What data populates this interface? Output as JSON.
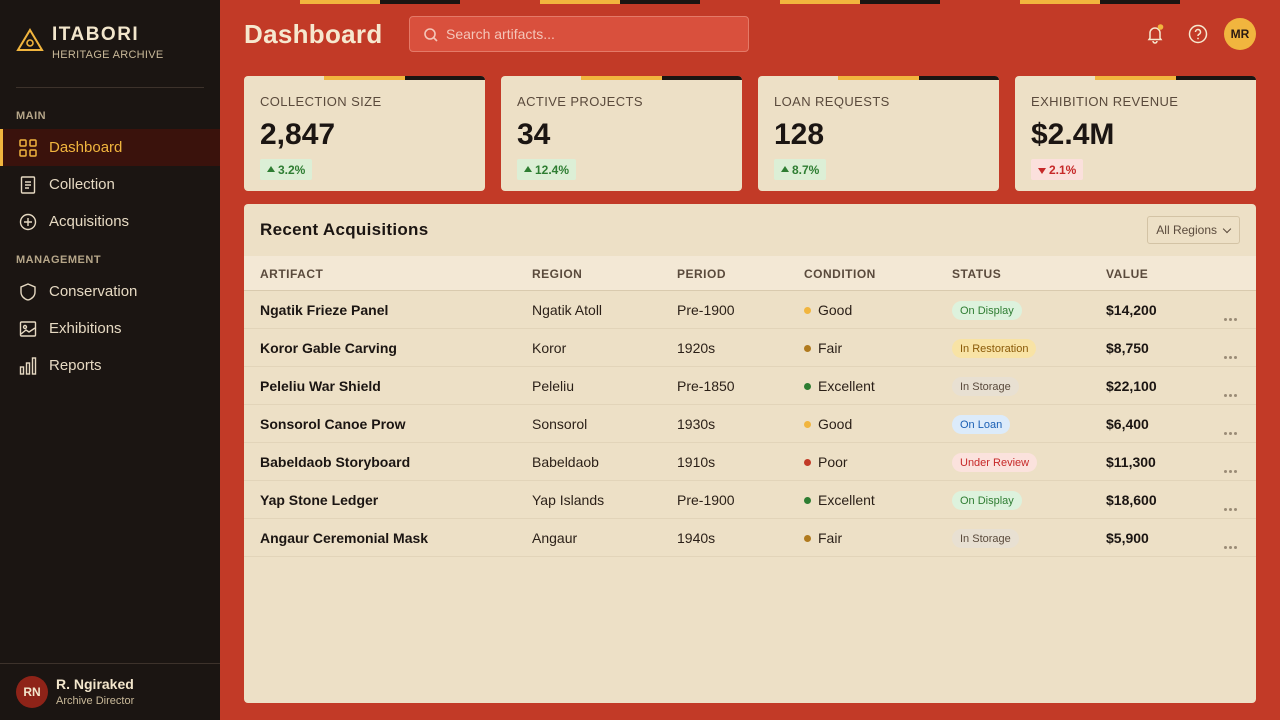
{
  "sidebar": {
    "brand": "ITABORI",
    "tagline": "HERITAGE ARCHIVE",
    "sections": [
      {
        "title": "MAIN",
        "items": [
          "Dashboard",
          "Collection",
          "Acquisitions"
        ]
      },
      {
        "title": "MANAGEMENT",
        "items": [
          "Conservation",
          "Exhibitions",
          "Reports"
        ]
      }
    ],
    "user": {
      "initials": "RN",
      "name": "R. Ngiraked",
      "role": "Archive Director"
    }
  },
  "header": {
    "title": "Dashboard",
    "search_placeholder": "Search artifacts...",
    "avatar": "MR"
  },
  "stats": [
    {
      "label": "COLLECTION SIZE",
      "value": "2,847",
      "change": "3.2%",
      "trend": "up"
    },
    {
      "label": "ACTIVE PROJECTS",
      "value": "34",
      "change": "12.4%",
      "trend": "up"
    },
    {
      "label": "LOAN REQUESTS",
      "value": "128",
      "change": "8.7%",
      "trend": "up"
    },
    {
      "label": "EXHIBITION REVENUE",
      "value": "$2.4M",
      "change": "2.1%",
      "trend": "down"
    }
  ],
  "table": {
    "title": "Recent Acquisitions",
    "filter": "All Regions",
    "columns": [
      "ARTIFACT",
      "REGION",
      "PERIOD",
      "CONDITION",
      "STATUS",
      "VALUE"
    ],
    "rows": [
      {
        "artifact": "Ngatik Frieze Panel",
        "region": "Ngatik Atoll",
        "period": "Pre-1900",
        "condition": "Good",
        "condition_color": "#f1b53e",
        "status": "On Display",
        "status_tone": "green",
        "value": "$14,200"
      },
      {
        "artifact": "Koror Gable Carving",
        "region": "Koror",
        "period": "1920s",
        "condition": "Fair",
        "condition_color": "#b07a1e",
        "status": "In Restoration",
        "status_tone": "yellow",
        "value": "$8,750"
      },
      {
        "artifact": "Peleliu War Shield",
        "region": "Peleliu",
        "period": "Pre-1850",
        "condition": "Excellent",
        "condition_color": "#2e7d32",
        "status": "In Storage",
        "status_tone": "gray",
        "value": "$22,100"
      },
      {
        "artifact": "Sonsorol Canoe Prow",
        "region": "Sonsorol",
        "period": "1930s",
        "condition": "Good",
        "condition_color": "#f1b53e",
        "status": "On Loan",
        "status_tone": "blue",
        "value": "$6,400"
      },
      {
        "artifact": "Babeldaob Storyboard",
        "region": "Babeldaob",
        "period": "1910s",
        "condition": "Poor",
        "condition_color": "#c23a27",
        "status": "Under Review",
        "status_tone": "red",
        "value": "$11,300"
      },
      {
        "artifact": "Yap Stone Ledger",
        "region": "Yap Islands",
        "period": "Pre-1900",
        "condition": "Excellent",
        "condition_color": "#2e7d32",
        "status": "On Display",
        "status_tone": "green",
        "value": "$18,600"
      },
      {
        "artifact": "Angaur Ceremonial Mask",
        "region": "Angaur",
        "period": "1940s",
        "condition": "Fair",
        "condition_color": "#b07a1e",
        "status": "In Storage",
        "status_tone": "gray",
        "value": "$5,900"
      }
    ]
  }
}
